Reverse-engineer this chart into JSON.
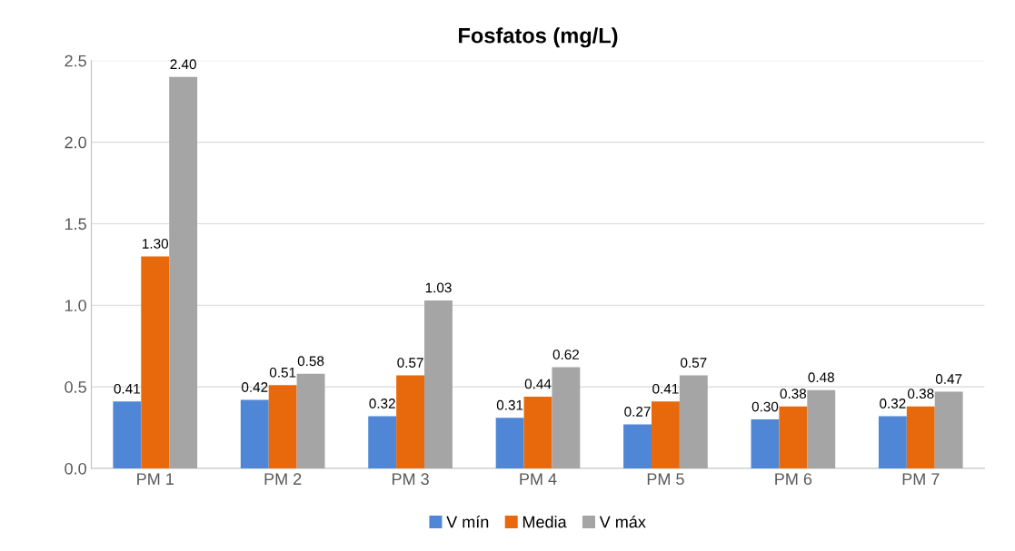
{
  "chart_data": {
    "type": "bar",
    "title": "Fosfatos (mg/L)",
    "categories": [
      "PM 1",
      "PM 2",
      "PM 3",
      "PM 4",
      "PM 5",
      "PM 6",
      "PM 7"
    ],
    "series": [
      {
        "name": "V mín",
        "color": "#4f86d6",
        "values": [
          0.41,
          0.42,
          0.32,
          0.31,
          0.27,
          0.3,
          0.32
        ],
        "value_labels": [
          "0.41",
          "0.42",
          "0.32",
          "0.31",
          "0.27",
          "0.30",
          "0.32"
        ]
      },
      {
        "name": "Media",
        "color": "#e8690c",
        "values": [
          1.3,
          0.51,
          0.57,
          0.44,
          0.41,
          0.38,
          0.38
        ],
        "value_labels": [
          "1.30",
          "0.51",
          "0.57",
          "0.44",
          "0.41",
          "0.38",
          "0.38"
        ]
      },
      {
        "name": "V máx",
        "color": "#a5a5a5",
        "values": [
          2.4,
          0.58,
          1.03,
          0.62,
          0.57,
          0.48,
          0.47
        ],
        "value_labels": [
          "2.40",
          "0.58",
          "1.03",
          "0.62",
          "0.57",
          "0.48",
          "0.47"
        ]
      }
    ],
    "ylim": [
      0,
      2.5
    ],
    "yticks": [
      {
        "value": 0,
        "label": "0.0"
      },
      0.5,
      {
        "value": 1,
        "label": "1.0"
      },
      1.5,
      {
        "value": 2,
        "label": "2.0"
      },
      2.5
    ],
    "grid": "y",
    "legend": "bottom"
  }
}
